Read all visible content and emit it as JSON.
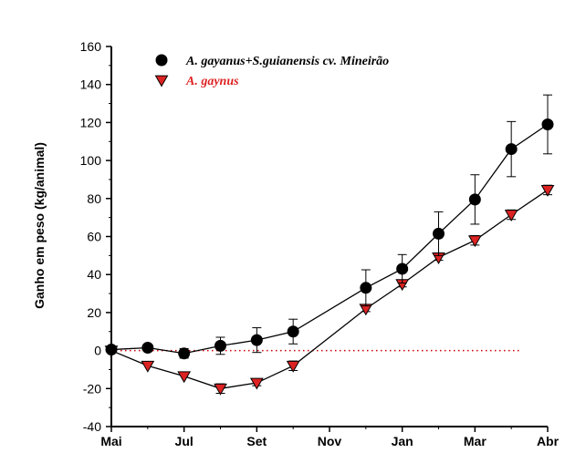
{
  "chart_data": {
    "type": "line",
    "ylabel": "Ganho em peso (kg/animal)",
    "ylim": [
      -40,
      160
    ],
    "yticks": [
      "-40",
      "-20",
      "0",
      "20",
      "40",
      "60",
      "80",
      "100",
      "120",
      "140",
      "160"
    ],
    "xlim": [
      0,
      11.5
    ],
    "xticks": [
      {
        "x": 0,
        "label": "Mai"
      },
      {
        "x": 2,
        "label": "Jul"
      },
      {
        "x": 4,
        "label": "Set"
      },
      {
        "x": 6,
        "label": "Nov"
      },
      {
        "x": 8,
        "label": "Jan"
      },
      {
        "x": 10,
        "label": "Mar"
      },
      {
        "x": 12,
        "label": "Abr"
      }
    ],
    "reference_line": {
      "y": 0,
      "style": "dotted",
      "color": "#cc0000"
    },
    "legend_position": "top-left",
    "series": [
      {
        "name": "A. gayanus+S.guianensis cv. Mineirão",
        "marker": "circle",
        "color": "#000000",
        "text_color": "#000000",
        "x": [
          0,
          1,
          2,
          3,
          4,
          5,
          7,
          8,
          9,
          10,
          11,
          12
        ],
        "y": [
          0.5,
          1.5,
          -1.5,
          2.5,
          5.5,
          10,
          33,
          43,
          61.5,
          79.5,
          106,
          119
        ],
        "err": [
          0,
          0,
          2.5,
          4.5,
          6.5,
          6.5,
          9.5,
          7.5,
          11.5,
          13,
          14.5,
          15.5
        ]
      },
      {
        "name": "A. gaynus",
        "marker": "triangle-down",
        "color": "#dd2222",
        "text_color": "#dd2222",
        "x": [
          0,
          1,
          2,
          3,
          4,
          5,
          7,
          8,
          9,
          10,
          11,
          12
        ],
        "y": [
          0,
          -8,
          -13.5,
          -20,
          -17,
          -8,
          22,
          35,
          49,
          58,
          71.5,
          84.5
        ],
        "err": [
          0,
          0,
          0,
          2.5,
          1.5,
          2.5,
          1.5,
          1.5,
          1.5,
          2.5,
          2.5,
          2.5
        ]
      }
    ]
  }
}
